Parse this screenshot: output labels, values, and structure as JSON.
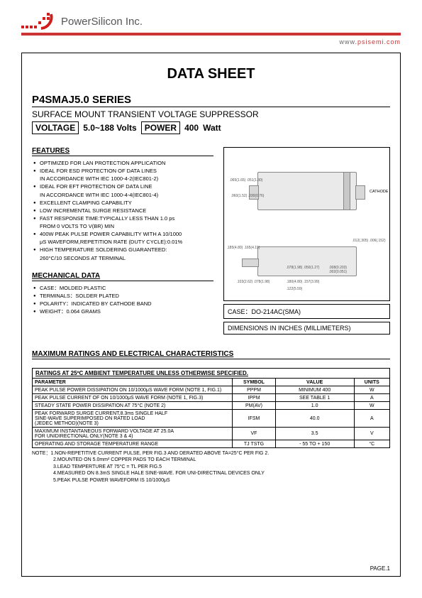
{
  "company": {
    "name": "PowerSilicon Inc.",
    "url_prefix": "www.",
    "url_domain": "psisemi.com"
  },
  "doc": {
    "title": "DATA SHEET",
    "series": "P4SMAJ5.0 SERIES",
    "subtitle": "SURFACE MOUNT TRANSIENT VOLTAGE SUPPRESSOR",
    "voltage_label": "VOLTAGE",
    "voltage_value": "5.0~188 Volts",
    "power_label": "POWER",
    "power_value": "400",
    "power_unit": "Watt"
  },
  "sections": {
    "features_title": "FEATURES",
    "mechanical_title": "MECHANICAL DATA",
    "max_title": "MAXIMUM RATINGS AND ELECTRICAL CHARACTERISTICS"
  },
  "features": [
    "OPTIMIZED FOR LAN PROTECTION APPLICATION",
    "IDEAL FOR ESD PROTECTION OF DATA LINES",
    "IN ACCORDANCE WITH IEC 1000-4-2(IEC801-2)",
    "IDEAL FOR EFT PROTECTION OF DATA LINE",
    "IN ACCORDANCE WITH IEC 1000-4-4(IEC801-4)",
    "EXCELLENT CLAMPING CAPABILITY",
    "LOW INCREMENTAL SURGE RESISTANCE",
    "FAST RESPONSE TIME:TYPICALLY LESS THAN 1.0 ps",
    "FROM 0 VOLTS TO V(BR) MIN",
    "400W PEAK PULSE POWER CAPABILITY WITH A 10/1000",
    "μS WAVEFORM,REPETITION RATE (DUTY CYCLE):0.01%",
    "HIGH TEMPERATURE SOLDERING GUARANTEED:",
    "260°C/10 SECONDS AT TERMINAL"
  ],
  "feature_is_cont": [
    false,
    false,
    true,
    false,
    true,
    false,
    false,
    false,
    true,
    false,
    true,
    false,
    true
  ],
  "mechanical": [
    "CASE：MOLDED PLASTIC",
    "TERMINALS：SOLDER PLATED",
    "POLARITY：INDICATED BY CATHODE BAND",
    "WEIGHT：0.064 GRAMS"
  ],
  "package": {
    "cathode_label": "CATHODE",
    "case_label": "CASE：DO-214AC(SMA)",
    "dim_label": "DIMENSIONS IN INCHES (MILLIMETERS)",
    "dims": {
      "a": ".065(1.65)\n.051(1.30)",
      "b": ".060(1.52)\n.030(0.76)",
      "c": ".012(.305)\n.006(.152)",
      "d": ".185(4.80)\n.165(4.19)",
      "e": ".103(2.62)\n.078(1.98)",
      "f": ".078(1.98)\n.050(1.27)",
      "g": ".008(0.203)\n.002(0.051)",
      "h": ".180(4.80)\n.157(3.99)",
      "i": ".122(5.59)"
    }
  },
  "ratings": {
    "header": "RATINGS AT 25ºC AMBIENT TEMPERATURE UNLESS OTHERWISE SPECIFIED.",
    "columns": [
      "PARAMETER",
      "SYMBOL",
      "VALUE",
      "UNITS"
    ],
    "rows": [
      [
        "PEAK PULSE POWER DISSIPATION ON 10/1000μS WAVE FORM (NOTE 1, FIG.1)",
        "PPPM",
        "MINIMUM 400",
        "W"
      ],
      [
        "PEAK PULSE CURRENT OF ON 10/1000μS WAVE FORM (NOTE 1, FIG.3)",
        "IPPM",
        "SEE TABLE 1",
        "A"
      ],
      [
        "STEADY STATE POWER DISSIPATION AT 75°C (NOTE 2)",
        "PM(AV)",
        "1.0",
        "W"
      ],
      [
        "PEAK FORWARD SURGE CURRENT,8.3ms SINGLE HALF\nSINE-WAVE SUPERIMPOSED ON RATED LOAD\n(JEDEC METHOD)(NOTE 3)",
        "IFSM",
        "40.0",
        "A"
      ],
      [
        "MAXIMUM INSTANTANEOUS FORWARD VOLTAGE AT 25.0A\nFOR UNIDIRECTIONAL ONLY(NOTE 3 & 4)",
        "VF",
        "3.5",
        "V"
      ],
      [
        "OPERATING AND STORAGE TEMPERATURE RANGE",
        "TJ  TSTG",
        "- 55 TO + 150",
        "°C"
      ]
    ]
  },
  "notes": [
    "NOTE：1.NON-REPETITIVE CURRENT PULSE, PER FIG.3 AND DERATED ABOVE TA=25°C PER FIG 2.",
    "2.MOUNTED ON 5.0mm² COPPER PADS TO EACH TERMINAL",
    "3.LEAD TEMPERTURE AT 75°C = TL PER FIG.5",
    "4.MEASURED ON 8.3mS SINGLE HALE SINE-WAVE. FOR UNI-DIRECTINAL DEVICES ONLY",
    "5.PEAK PULSE POWER WAVEFORM IS 10/1000μS"
  ],
  "page": "PAGE.1"
}
